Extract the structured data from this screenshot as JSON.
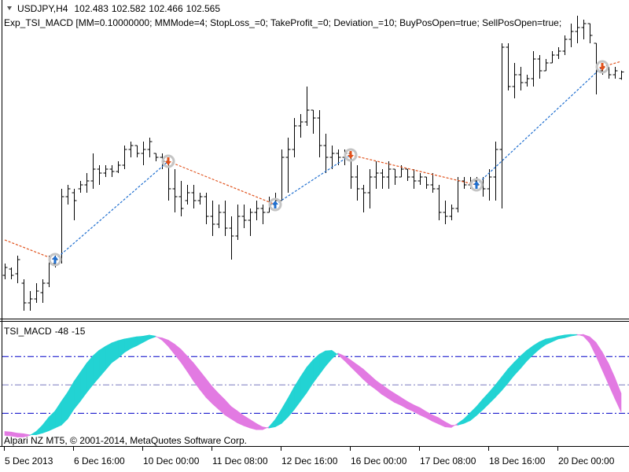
{
  "chart_data": [
    {
      "type": "ohlc",
      "title": "USDJPY,H4",
      "subtitle": "Exp_TSI_MACD [MM=0.10000000; MMMode=4; StopLoss_=0; TakeProfit_=0; Deviation_=10; BuyPosOpen=true; SellPosOpen=true;",
      "annotation": "Alpari NZ MT5, © 2001-2014, MetaQuotes Software Corp.",
      "categories": [
        "5 Dec 2013",
        null,
        null,
        null,
        null,
        null,
        null,
        null,
        null,
        null,
        null,
        "6 Dec 16:00",
        null,
        null,
        null,
        null,
        null,
        null,
        null,
        null,
        null,
        null,
        "10 Dec 00:00",
        null,
        null,
        null,
        null,
        null,
        null,
        null,
        null,
        null,
        null,
        "11 Dec 08:00",
        null,
        null,
        null,
        null,
        null,
        null,
        null,
        null,
        null,
        null,
        "12 Dec 16:00",
        null,
        null,
        null,
        null,
        null,
        null,
        null,
        null,
        null,
        null,
        "16 Dec 00:00",
        null,
        null,
        null,
        null,
        null,
        null,
        null,
        null,
        null,
        null,
        "17 Dec 08:00",
        null,
        null,
        null,
        null,
        null,
        null,
        null,
        null,
        null,
        null,
        "18 Dec 16:00",
        null,
        null,
        null,
        null,
        null,
        null,
        null,
        null,
        null,
        null,
        "20 Dec 00:00",
        null,
        null,
        null,
        null,
        null,
        null,
        null,
        null,
        null,
        null
      ],
      "open": [
        99.98,
        100.06,
        100.0,
        99.88,
        99.63,
        99.68,
        99.76,
        99.88,
        100.13,
        100.18,
        100.98,
        101.03,
        101.08,
        101.13,
        101.18,
        101.33,
        101.28,
        101.33,
        101.3,
        101.38,
        101.58,
        101.63,
        101.53,
        101.58,
        101.53,
        101.48,
        101.43,
        101.08,
        100.98,
        100.93,
        101.03,
        100.93,
        100.98,
        100.73,
        100.63,
        100.78,
        100.58,
        100.48,
        100.73,
        100.68,
        100.78,
        100.83,
        100.78,
        100.88,
        100.93,
        101.48,
        101.58,
        101.88,
        101.93,
        102.08,
        101.98,
        101.63,
        101.48,
        101.53,
        101.48,
        101.53,
        101.23,
        101.08,
        101.03,
        101.23,
        101.28,
        101.23,
        101.33,
        101.23,
        101.33,
        101.23,
        101.18,
        101.23,
        101.13,
        101.08,
        100.78,
        100.73,
        100.83,
        101.18,
        101.13,
        101.18,
        101.13,
        101.08,
        101.23,
        101.58,
        102.88,
        102.38,
        102.53,
        102.43,
        102.48,
        102.73,
        102.58,
        102.68,
        102.78,
        102.83,
        102.98,
        103.08,
        103.13,
        103.18,
        102.93,
        102.58,
        102.63,
        102.53,
        102.483
      ],
      "high": [
        100.13,
        100.08,
        100.23,
        99.93,
        99.78,
        99.88,
        99.93,
        100.23,
        100.23,
        101.08,
        101.13,
        101.08,
        101.18,
        101.28,
        101.53,
        101.38,
        101.38,
        101.38,
        101.43,
        101.63,
        101.68,
        101.63,
        101.68,
        101.73,
        101.53,
        101.53,
        101.48,
        101.33,
        101.18,
        101.13,
        101.13,
        101.03,
        101.03,
        100.93,
        100.88,
        100.93,
        100.73,
        100.88,
        100.88,
        100.83,
        100.93,
        100.88,
        100.98,
        101.03,
        101.58,
        101.73,
        101.98,
        102.03,
        102.38,
        102.08,
        102.08,
        101.78,
        101.63,
        101.58,
        101.58,
        101.53,
        101.38,
        101.13,
        101.33,
        101.43,
        101.33,
        101.43,
        101.33,
        101.38,
        101.33,
        101.33,
        101.28,
        101.23,
        101.28,
        101.13,
        100.93,
        100.88,
        101.23,
        101.23,
        101.23,
        101.23,
        101.23,
        101.33,
        101.68,
        102.93,
        102.93,
        102.68,
        102.63,
        102.53,
        102.83,
        102.78,
        102.73,
        102.83,
        102.88,
        103.03,
        103.18,
        103.28,
        103.23,
        103.18,
        102.93,
        102.68,
        102.63,
        102.63,
        102.582
      ],
      "low": [
        99.93,
        99.93,
        99.88,
        99.53,
        99.53,
        99.63,
        99.63,
        99.83,
        100.08,
        100.13,
        100.88,
        100.68,
        101.03,
        101.03,
        101.08,
        101.13,
        101.23,
        101.23,
        101.28,
        101.33,
        101.48,
        101.48,
        101.38,
        101.48,
        101.43,
        101.33,
        100.93,
        100.78,
        100.73,
        100.88,
        100.83,
        100.88,
        100.63,
        100.48,
        100.58,
        100.48,
        100.18,
        100.43,
        100.58,
        100.48,
        100.68,
        100.63,
        100.78,
        100.83,
        100.93,
        101.03,
        101.48,
        101.73,
        101.88,
        101.78,
        101.48,
        101.28,
        101.33,
        101.38,
        101.38,
        101.08,
        100.93,
        100.78,
        100.83,
        101.08,
        101.08,
        101.08,
        101.13,
        101.23,
        101.18,
        101.08,
        101.13,
        101.08,
        101.03,
        100.68,
        100.63,
        100.68,
        100.78,
        101.08,
        101.08,
        101.08,
        100.98,
        100.93,
        100.93,
        100.83,
        102.33,
        102.23,
        102.33,
        102.38,
        102.38,
        102.48,
        102.58,
        102.68,
        102.73,
        102.78,
        102.88,
        102.93,
        102.98,
        102.93,
        102.28,
        102.53,
        102.48,
        102.48,
        102.466
      ],
      "close": [
        100.08,
        99.98,
        100.18,
        99.63,
        99.68,
        99.78,
        99.88,
        100.13,
        100.18,
        100.98,
        101.08,
        100.93,
        101.13,
        101.18,
        101.33,
        101.28,
        101.33,
        101.3,
        101.38,
        101.58,
        101.63,
        101.53,
        101.58,
        101.68,
        101.48,
        101.43,
        101.08,
        100.98,
        100.83,
        101.03,
        100.93,
        100.98,
        100.73,
        100.63,
        100.78,
        100.58,
        100.48,
        100.73,
        100.68,
        100.78,
        100.83,
        100.78,
        100.88,
        100.93,
        101.48,
        101.58,
        101.88,
        101.93,
        102.08,
        101.98,
        101.63,
        101.48,
        101.53,
        101.48,
        101.53,
        101.23,
        101.08,
        101.03,
        101.23,
        101.28,
        101.23,
        101.33,
        101.23,
        101.33,
        101.23,
        101.18,
        101.23,
        101.13,
        101.08,
        100.78,
        100.73,
        100.83,
        101.18,
        101.13,
        101.18,
        101.13,
        101.08,
        101.23,
        101.58,
        102.88,
        102.38,
        102.53,
        102.43,
        102.48,
        102.73,
        102.58,
        102.68,
        102.78,
        102.83,
        102.98,
        103.08,
        103.13,
        103.18,
        103.03,
        102.58,
        102.63,
        102.53,
        102.58,
        102.565
      ],
      "color": "#000000",
      "ylim": [
        99.43,
        103.48
      ],
      "signals": {
        "x": [
          0,
          8,
          26,
          43,
          55,
          75,
          95,
          98
        ],
        "values": [
          100.43,
          100.18,
          101.43,
          100.88,
          101.51,
          101.13,
          102.63,
          102.7
        ],
        "first_signal": "buy",
        "buy_color": "#1f6fd0",
        "sell_color": "#e0501a",
        "ring_color": "#c4c4c4"
      }
    },
    {
      "type": "band",
      "title": "TSI_MACD",
      "series": [
        {
          "values": [
            -89,
            -90,
            -92,
            -92,
            -89,
            -82,
            -71,
            -57,
            -46,
            -29,
            -13,
            6,
            22,
            38,
            51,
            61,
            68,
            74,
            78,
            81,
            83,
            85,
            86,
            88,
            86,
            79,
            68,
            54,
            40,
            24,
            7,
            -8,
            -22,
            -33,
            -43,
            -53,
            -60,
            -67,
            -72,
            -76,
            -79,
            -79,
            -74,
            -61,
            -43,
            -24,
            -4,
            14,
            31,
            44,
            54,
            60,
            61,
            53,
            43,
            32,
            21,
            10,
            0,
            -8,
            -17,
            -24,
            -31,
            -36,
            -42,
            -47,
            -53,
            -58,
            -64,
            -69,
            -74,
            -75,
            -68,
            -60,
            -49,
            -38,
            -25,
            -13,
            0,
            14,
            28,
            40,
            51,
            61,
            69,
            76,
            81,
            83,
            86,
            88,
            89,
            89,
            86,
            74,
            51,
            26,
            1,
            -24,
            -48
          ]
        },
        {
          "values": [
            -82,
            -83,
            -85,
            -86,
            -88,
            -88,
            -85,
            -81,
            -76,
            -71,
            -60,
            -43,
            -29,
            -14,
            0,
            13,
            26,
            39,
            47,
            57,
            64,
            69,
            75,
            81,
            85,
            83,
            79,
            72,
            63,
            51,
            39,
            25,
            11,
            -3,
            -15,
            -26,
            -38,
            -46,
            -54,
            -61,
            -68,
            -74,
            -76,
            -74,
            -68,
            -57,
            -44,
            -29,
            -14,
            3,
            18,
            33,
            46,
            56,
            51,
            44,
            36,
            28,
            18,
            8,
            0,
            -8,
            -15,
            -22,
            -29,
            -35,
            -40,
            -47,
            -53,
            -58,
            -65,
            -71,
            -71,
            -68,
            -63,
            -54,
            -44,
            -33,
            -22,
            -10,
            3,
            17,
            29,
            42,
            53,
            63,
            71,
            76,
            81,
            83,
            86,
            88,
            89,
            85,
            75,
            58,
            38,
            13,
            -15
          ]
        }
      ],
      "up_color": "#22d3d3",
      "down_color": "#e27ae2",
      "ylim": [
        -105,
        110
      ],
      "levels": [
        50,
        0,
        -50
      ],
      "level_colors": [
        "#0000c8",
        "#7c7cc0",
        "#0000c8"
      ]
    }
  ]
}
